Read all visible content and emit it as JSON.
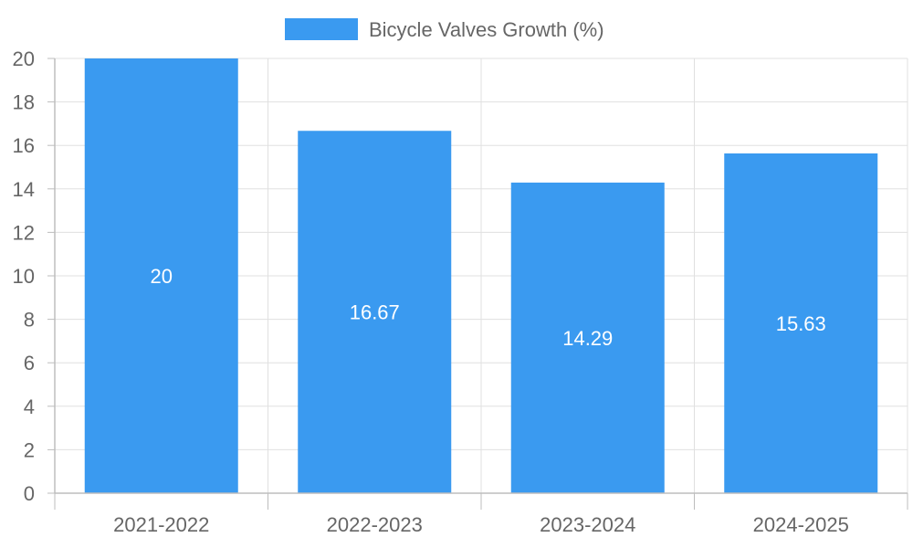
{
  "chart_data": {
    "type": "bar",
    "categories": [
      "2021-2022",
      "2022-2023",
      "2023-2024",
      "2024-2025"
    ],
    "series": [
      {
        "name": "Bicycle Valves Growth (%)",
        "values": [
          20,
          16.67,
          14.29,
          15.63
        ],
        "color": "#3a9af0"
      }
    ],
    "ylim": [
      0,
      20
    ],
    "yticks": [
      0,
      2,
      4,
      6,
      8,
      10,
      12,
      14,
      16,
      18,
      20
    ],
    "data_labels": [
      "20",
      "16.67",
      "14.29",
      "15.63"
    ],
    "grid": true,
    "legend_position": "top-center"
  }
}
